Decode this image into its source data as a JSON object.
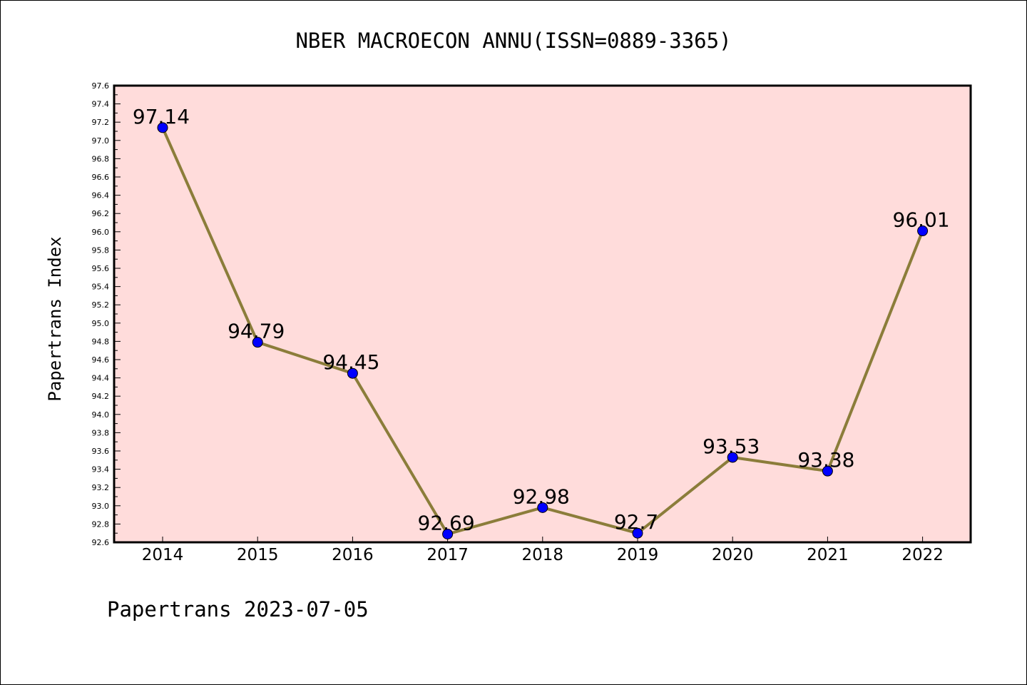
{
  "footer": "Papertrans 2023-07-05",
  "chart_data": {
    "type": "line",
    "title": "NBER MACROECON ANNU(ISSN=0889-3365)",
    "ylabel": "Papertrans Index",
    "xlabel": "",
    "categories": [
      "2014",
      "2015",
      "2016",
      "2017",
      "2018",
      "2019",
      "2020",
      "2021",
      "2022"
    ],
    "values": [
      97.14,
      94.79,
      94.45,
      92.69,
      92.98,
      92.7,
      93.53,
      93.38,
      96.01
    ],
    "data_labels": [
      "97.14",
      "94.79",
      "94.45",
      "92.69",
      "92.98",
      "92.7",
      "93.53",
      "93.38",
      "96.01"
    ],
    "ylim": [
      92.6,
      97.6
    ],
    "yticks": [
      "92.6",
      "92.8",
      "93.0",
      "93.2",
      "93.4",
      "93.6",
      "93.8",
      "94.0",
      "94.2",
      "94.4",
      "94.6",
      "94.8",
      "95.0",
      "95.2",
      "95.4",
      "95.6",
      "95.8",
      "96.0",
      "96.2",
      "96.4",
      "96.6",
      "96.8",
      "97.0",
      "97.2",
      "97.4",
      "97.6"
    ],
    "grid": false,
    "colors": {
      "plot_background": "#ffdcdb",
      "line": "#8b7d3a",
      "marker": "#0000ff"
    }
  }
}
